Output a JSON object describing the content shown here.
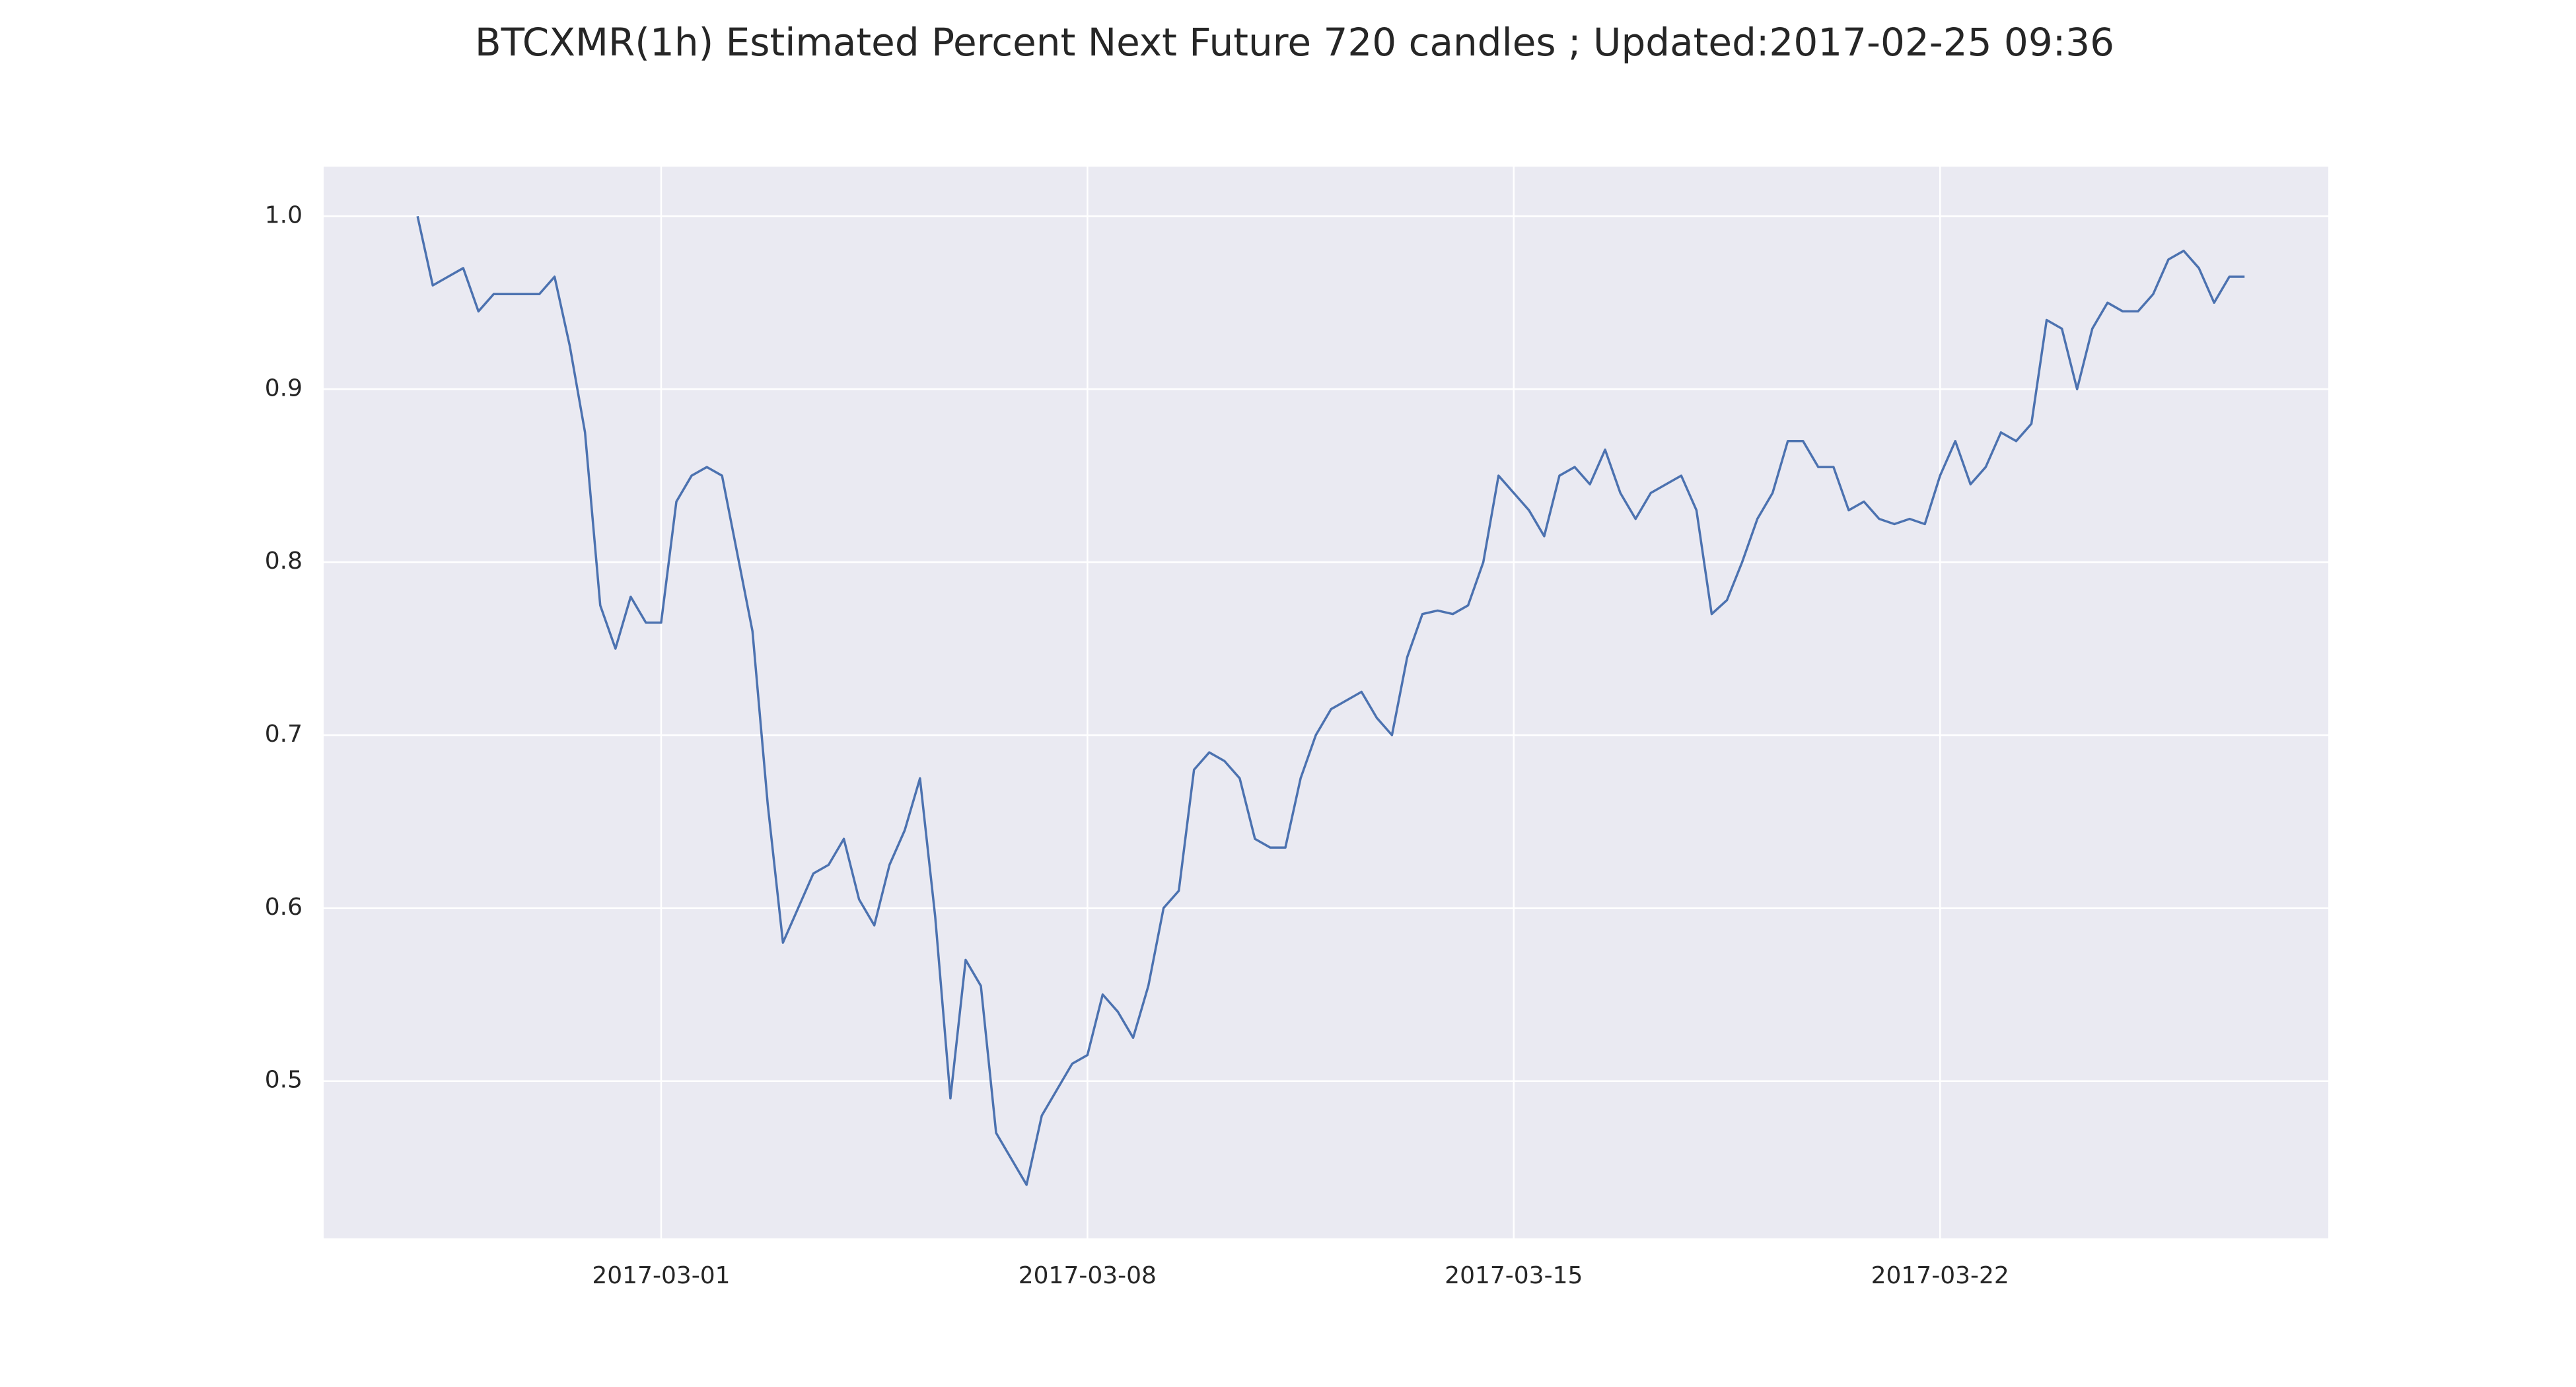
{
  "chart_data": {
    "type": "line",
    "title": "BTCXMR(1h) Estimated Percent Next Future 720 candles ; Updated:2017-02-25 09:36",
    "x": [
      "2017-02-25 00:00",
      "2017-02-25 06:00",
      "2017-02-25 12:00",
      "2017-02-25 18:00",
      "2017-02-26 00:00",
      "2017-02-26 06:00",
      "2017-02-26 12:00",
      "2017-02-26 18:00",
      "2017-02-27 00:00",
      "2017-02-27 06:00",
      "2017-02-27 12:00",
      "2017-02-27 18:00",
      "2017-02-28 00:00",
      "2017-02-28 06:00",
      "2017-02-28 12:00",
      "2017-02-28 18:00",
      "2017-03-01 00:00",
      "2017-03-01 06:00",
      "2017-03-01 12:00",
      "2017-03-01 18:00",
      "2017-03-02 00:00",
      "2017-03-02 06:00",
      "2017-03-02 12:00",
      "2017-03-02 18:00",
      "2017-03-03 00:00",
      "2017-03-03 06:00",
      "2017-03-03 12:00",
      "2017-03-03 18:00",
      "2017-03-04 00:00",
      "2017-03-04 06:00",
      "2017-03-04 12:00",
      "2017-03-04 18:00",
      "2017-03-05 00:00",
      "2017-03-05 06:00",
      "2017-03-05 12:00",
      "2017-03-05 18:00",
      "2017-03-06 00:00",
      "2017-03-06 06:00",
      "2017-03-06 12:00",
      "2017-03-06 18:00",
      "2017-03-07 00:00",
      "2017-03-07 06:00",
      "2017-03-07 12:00",
      "2017-03-07 18:00",
      "2017-03-08 00:00",
      "2017-03-08 06:00",
      "2017-03-08 12:00",
      "2017-03-08 18:00",
      "2017-03-09 00:00",
      "2017-03-09 06:00",
      "2017-03-09 12:00",
      "2017-03-09 18:00",
      "2017-03-10 00:00",
      "2017-03-10 06:00",
      "2017-03-10 12:00",
      "2017-03-10 18:00",
      "2017-03-11 00:00",
      "2017-03-11 06:00",
      "2017-03-11 12:00",
      "2017-03-11 18:00",
      "2017-03-12 00:00",
      "2017-03-12 06:00",
      "2017-03-12 12:00",
      "2017-03-12 18:00",
      "2017-03-13 00:00",
      "2017-03-13 06:00",
      "2017-03-13 12:00",
      "2017-03-13 18:00",
      "2017-03-14 00:00",
      "2017-03-14 06:00",
      "2017-03-14 12:00",
      "2017-03-14 18:00",
      "2017-03-15 00:00",
      "2017-03-15 06:00",
      "2017-03-15 12:00",
      "2017-03-15 18:00",
      "2017-03-16 00:00",
      "2017-03-16 06:00",
      "2017-03-16 12:00",
      "2017-03-16 18:00",
      "2017-03-17 00:00",
      "2017-03-17 06:00",
      "2017-03-17 12:00",
      "2017-03-17 18:00",
      "2017-03-18 00:00",
      "2017-03-18 06:00",
      "2017-03-18 12:00",
      "2017-03-18 18:00",
      "2017-03-19 00:00",
      "2017-03-19 06:00",
      "2017-03-19 12:00",
      "2017-03-19 18:00",
      "2017-03-20 00:00",
      "2017-03-20 06:00",
      "2017-03-20 12:00",
      "2017-03-20 18:00",
      "2017-03-21 00:00",
      "2017-03-21 06:00",
      "2017-03-21 12:00",
      "2017-03-21 18:00",
      "2017-03-22 00:00",
      "2017-03-22 06:00",
      "2017-03-22 12:00",
      "2017-03-22 18:00",
      "2017-03-23 00:00",
      "2017-03-23 06:00",
      "2017-03-23 12:00",
      "2017-03-23 18:00",
      "2017-03-24 00:00",
      "2017-03-24 06:00",
      "2017-03-24 12:00",
      "2017-03-24 18:00",
      "2017-03-25 00:00",
      "2017-03-25 06:00",
      "2017-03-25 12:00",
      "2017-03-25 18:00",
      "2017-03-26 00:00",
      "2017-03-26 06:00",
      "2017-03-26 12:00",
      "2017-03-26 18:00",
      "2017-03-27 00:00"
    ],
    "values": [
      1.0,
      0.96,
      0.965,
      0.97,
      0.945,
      0.955,
      0.955,
      0.955,
      0.955,
      0.965,
      0.925,
      0.875,
      0.775,
      0.75,
      0.78,
      0.765,
      0.765,
      0.835,
      0.85,
      0.855,
      0.85,
      0.805,
      0.76,
      0.66,
      0.58,
      0.6,
      0.62,
      0.625,
      0.64,
      0.605,
      0.59,
      0.625,
      0.645,
      0.675,
      0.595,
      0.49,
      0.57,
      0.555,
      0.47,
      0.455,
      0.44,
      0.48,
      0.495,
      0.51,
      0.515,
      0.55,
      0.54,
      0.525,
      0.555,
      0.6,
      0.61,
      0.68,
      0.69,
      0.685,
      0.675,
      0.64,
      0.635,
      0.635,
      0.675,
      0.7,
      0.715,
      0.72,
      0.725,
      0.71,
      0.7,
      0.745,
      0.77,
      0.772,
      0.77,
      0.775,
      0.8,
      0.85,
      0.84,
      0.83,
      0.815,
      0.85,
      0.855,
      0.845,
      0.865,
      0.84,
      0.825,
      0.84,
      0.845,
      0.85,
      0.83,
      0.77,
      0.778,
      0.8,
      0.825,
      0.84,
      0.87,
      0.87,
      0.855,
      0.855,
      0.83,
      0.835,
      0.825,
      0.822,
      0.825,
      0.822,
      0.85,
      0.87,
      0.845,
      0.855,
      0.875,
      0.87,
      0.88,
      0.94,
      0.935,
      0.9,
      0.935,
      0.95,
      0.945,
      0.945,
      0.955,
      0.975,
      0.98,
      0.97,
      0.95,
      0.965,
      0.965
    ],
    "color": "#4c72b0",
    "xlim": [
      "2017-02-23 11:00",
      "2017-03-28 09:00"
    ],
    "xticks": [
      "2017-03-01",
      "2017-03-08",
      "2017-03-15",
      "2017-03-22"
    ],
    "ylim": [
      0.409,
      1.0286
    ],
    "yticks": [
      0.5,
      0.6,
      0.7,
      0.8,
      0.9,
      {
        "value": 1,
        "label": "1.0"
      }
    ],
    "grid": true
  }
}
